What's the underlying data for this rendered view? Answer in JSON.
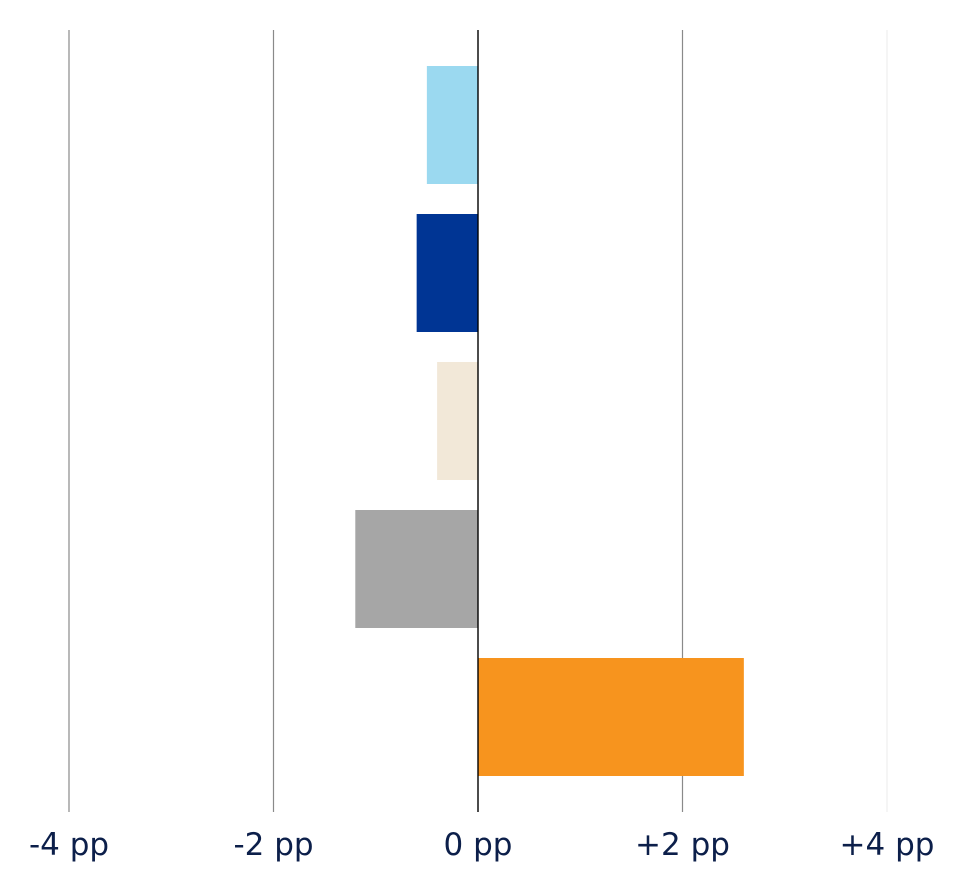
{
  "chart_data": {
    "type": "bar",
    "orientation": "horizontal",
    "title": "",
    "xlabel": "",
    "ylabel": "",
    "xlim": [
      -4,
      4
    ],
    "grid": true,
    "x_ticks": [
      {
        "value": -4,
        "label": "-4 pp"
      },
      {
        "value": -2,
        "label": "-2 pp"
      },
      {
        "value": 0,
        "label": "0 pp"
      },
      {
        "value": 2,
        "label": "+2 pp"
      },
      {
        "value": 4,
        "label": "+4 pp"
      }
    ],
    "bars": [
      {
        "value": -0.5,
        "color": "#9bd9f0"
      },
      {
        "value": -0.6,
        "color": "#003594"
      },
      {
        "value": -0.4,
        "color": "#f2e8d8"
      },
      {
        "value": -1.2,
        "color": "#a6a6a6"
      },
      {
        "value": 2.6,
        "color": "#f7941e"
      }
    ]
  }
}
